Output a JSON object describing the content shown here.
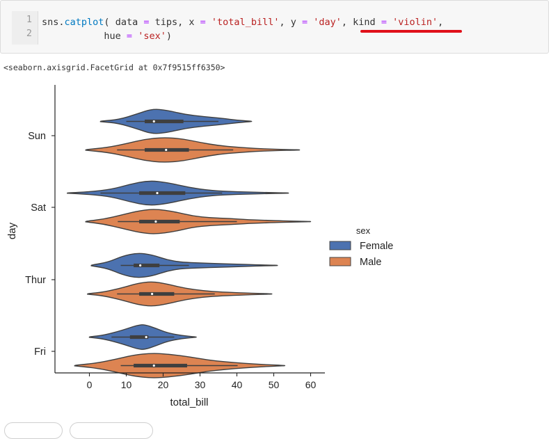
{
  "code_cell": {
    "line_numbers": [
      "1",
      "2"
    ],
    "line1": {
      "t1": "sns.",
      "t2": "catplot",
      "t3": "(",
      "t4": " data ",
      "t5": "=",
      "t6": " tips, x ",
      "t7": "=",
      "t8": " ",
      "t9": "'total_bill'",
      "t10": ", y ",
      "t11": "=",
      "t12": " ",
      "t13": "'day'",
      "t14": ", kind ",
      "t15": "=",
      "t16": " ",
      "t17": "'violin'",
      "t18": ","
    },
    "line2": {
      "t1": "           hue ",
      "t2": "=",
      "t3": " ",
      "t4": "'sex'",
      "t5": ")"
    },
    "underline_color": "#e0101a"
  },
  "output": {
    "text": "<seaborn.axisgrid.FacetGrid at 0x7f9515ff6350>"
  },
  "chart_data": {
    "type": "violin",
    "orientation": "horizontal",
    "xlabel": "total_bill",
    "ylabel": "day",
    "x_ticks": [
      0,
      10,
      20,
      30,
      40,
      50,
      60
    ],
    "x_tick_labels": [
      "0",
      "10",
      "20",
      "30",
      "40",
      "50",
      "60"
    ],
    "xlim": [
      -10,
      63
    ],
    "categories": [
      "Sun",
      "Sat",
      "Thur",
      "Fri"
    ],
    "legend": {
      "title": "sex",
      "placement": "center-right",
      "entries": [
        {
          "label": "Female",
          "color": "#4c72b0"
        },
        {
          "label": "Male",
          "color": "#dd8452"
        }
      ]
    },
    "series": [
      {
        "name": "Female",
        "color": "#4c72b0",
        "violins": [
          {
            "day": "Sun",
            "min": 3,
            "max": 44,
            "q1": 15,
            "median": 17.5,
            "q3": 25.5,
            "w_low": 10,
            "w_high": 35,
            "profile": [
              [
                3,
                0.02
              ],
              [
                8,
                0.15
              ],
              [
                13,
                0.6
              ],
              [
                17,
                1.0
              ],
              [
                21,
                0.9
              ],
              [
                26,
                0.55
              ],
              [
                31,
                0.38
              ],
              [
                36,
                0.25
              ],
              [
                40,
                0.1
              ],
              [
                44,
                0.01
              ]
            ]
          },
          {
            "day": "Sat",
            "min": -6,
            "max": 54,
            "q1": 13.5,
            "median": 18.4,
            "q3": 26,
            "w_low": 3,
            "w_high": 36,
            "profile": [
              [
                -6,
                0.01
              ],
              [
                0,
                0.1
              ],
              [
                6,
                0.3
              ],
              [
                11,
                0.7
              ],
              [
                16,
                1.0
              ],
              [
                21,
                0.85
              ],
              [
                27,
                0.45
              ],
              [
                33,
                0.2
              ],
              [
                40,
                0.1
              ],
              [
                47,
                0.05
              ],
              [
                54,
                0.01
              ]
            ]
          },
          {
            "day": "Thur",
            "min": 0.5,
            "max": 51,
            "q1": 12,
            "median": 13.8,
            "q3": 19,
            "w_low": 8.5,
            "w_high": 27,
            "profile": [
              [
                0.5,
                0.03
              ],
              [
                5,
                0.25
              ],
              [
                9,
                0.75
              ],
              [
                13,
                1.0
              ],
              [
                17,
                0.85
              ],
              [
                21,
                0.45
              ],
              [
                25,
                0.25
              ],
              [
                30,
                0.2
              ],
              [
                35,
                0.15
              ],
              [
                40,
                0.1
              ],
              [
                45,
                0.05
              ],
              [
                51,
                0.01
              ]
            ]
          },
          {
            "day": "Fri",
            "min": 0,
            "max": 29,
            "q1": 11,
            "median": 15.4,
            "q3": 16,
            "w_low": 6,
            "w_high": 23,
            "profile": [
              [
                0,
                0.02
              ],
              [
                4,
                0.15
              ],
              [
                9,
                0.55
              ],
              [
                13,
                0.95
              ],
              [
                15,
                1.0
              ],
              [
                18,
                0.7
              ],
              [
                21,
                0.35
              ],
              [
                25,
                0.12
              ],
              [
                29,
                0.01
              ]
            ]
          }
        ]
      },
      {
        "name": "Male",
        "color": "#dd8452",
        "violins": [
          {
            "day": "Sun",
            "min": -1,
            "max": 57,
            "q1": 15,
            "median": 20.8,
            "q3": 27,
            "w_low": 7.5,
            "w_high": 39,
            "profile": [
              [
                -1,
                0.02
              ],
              [
                5,
                0.2
              ],
              [
                10,
                0.5
              ],
              [
                15,
                0.85
              ],
              [
                20,
                1.0
              ],
              [
                25,
                0.9
              ],
              [
                30,
                0.6
              ],
              [
                35,
                0.35
              ],
              [
                40,
                0.22
              ],
              [
                45,
                0.12
              ],
              [
                50,
                0.06
              ],
              [
                57,
                0.01
              ]
            ]
          },
          {
            "day": "Sat",
            "min": -1,
            "max": 60,
            "q1": 13.5,
            "median": 18,
            "q3": 24.5,
            "w_low": 7.7,
            "w_high": 40,
            "profile": [
              [
                -1,
                0.02
              ],
              [
                4,
                0.2
              ],
              [
                9,
                0.55
              ],
              [
                14,
                0.9
              ],
              [
                18,
                1.0
              ],
              [
                23,
                0.8
              ],
              [
                28,
                0.45
              ],
              [
                33,
                0.3
              ],
              [
                38,
                0.25
              ],
              [
                43,
                0.15
              ],
              [
                50,
                0.08
              ],
              [
                55,
                0.04
              ],
              [
                60,
                0.01
              ]
            ]
          },
          {
            "day": "Thur",
            "min": -0.5,
            "max": 49.5,
            "q1": 13.5,
            "median": 17,
            "q3": 23,
            "w_low": 7.5,
            "w_high": 34,
            "profile": [
              [
                -0.5,
                0.02
              ],
              [
                4,
                0.15
              ],
              [
                9,
                0.5
              ],
              [
                13,
                0.85
              ],
              [
                17,
                1.0
              ],
              [
                21,
                0.8
              ],
              [
                26,
                0.45
              ],
              [
                31,
                0.25
              ],
              [
                36,
                0.15
              ],
              [
                42,
                0.08
              ],
              [
                49.5,
                0.01
              ]
            ]
          },
          {
            "day": "Fri",
            "min": -4,
            "max": 53,
            "q1": 12,
            "median": 17.5,
            "q3": 26.5,
            "w_low": 8.5,
            "w_high": 40.2,
            "profile": [
              [
                -4,
                0.02
              ],
              [
                2,
                0.2
              ],
              [
                7,
                0.5
              ],
              [
                12,
                0.85
              ],
              [
                17,
                1.0
              ],
              [
                22,
                0.9
              ],
              [
                27,
                0.7
              ],
              [
                32,
                0.45
              ],
              [
                37,
                0.3
              ],
              [
                42,
                0.18
              ],
              [
                47,
                0.09
              ],
              [
                53,
                0.01
              ]
            ]
          }
        ]
      }
    ]
  }
}
